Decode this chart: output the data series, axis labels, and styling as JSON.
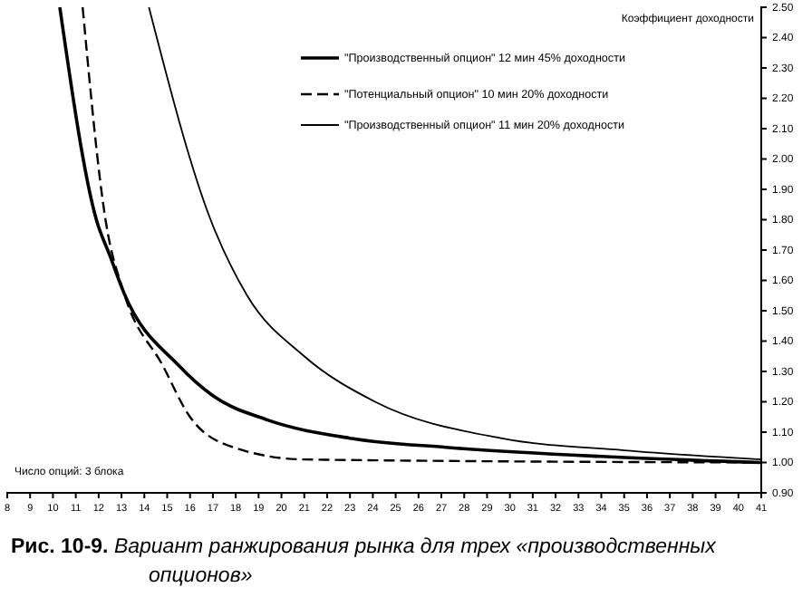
{
  "chart_data": {
    "type": "line",
    "title": "Рис. 10-9. Вариант ранжирования рынка для трех «производственных опционов»",
    "xlabel": "Число опций: 3 блока",
    "ylabel": "Коэффициент доходности",
    "xlim": [
      8,
      41
    ],
    "xticks": [
      8,
      9,
      10,
      11,
      12,
      13,
      14,
      15,
      16,
      17,
      18,
      19,
      20,
      21,
      22,
      23,
      24,
      25,
      26,
      27,
      28,
      29,
      30,
      31,
      32,
      33,
      34,
      35,
      36,
      37,
      38,
      39,
      40,
      41
    ],
    "ylim": [
      0.9,
      2.5
    ],
    "yticks": [
      {
        "value": 0.9,
        "label": "0.90"
      },
      {
        "value": 1.0,
        "label": "1.00"
      },
      {
        "value": 1.1,
        "label": "1.10"
      },
      {
        "value": 1.2,
        "label": "1.20"
      },
      {
        "value": 1.3,
        "label": "1.30"
      },
      {
        "value": 1.4,
        "label": "1.40"
      },
      {
        "value": 1.5,
        "label": "1.50"
      },
      {
        "value": 1.6,
        "label": "1.60"
      },
      {
        "value": 1.7,
        "label": "1.70"
      },
      {
        "value": 1.8,
        "label": "1.80"
      },
      {
        "value": 1.9,
        "label": "1.90"
      },
      {
        "value": 2.0,
        "label": "2.00"
      },
      {
        "value": 2.1,
        "label": "2.10"
      },
      {
        "value": 2.2,
        "label": "2.20"
      },
      {
        "value": 2.3,
        "label": "2.30"
      },
      {
        "value": 2.4,
        "label": "2.40"
      },
      {
        "value": 2.5,
        "label": "2.50"
      }
    ],
    "marker": "none",
    "grid": false,
    "legend": "top",
    "series": [
      {
        "name": "\"Производственный опцион\" 12 мин 45% доходности",
        "color": "#000000",
        "line_style": "solid",
        "x": [
          10.3,
          11.9,
          12.5,
          13.1,
          15.5,
          17,
          19.4,
          23,
          27.2,
          34,
          41
        ],
        "values": [
          2.5,
          1.8,
          1.68,
          1.56,
          1.32,
          1.22,
          1.14,
          1.08,
          1.05,
          1.02,
          1.0
        ]
      },
      {
        "name": "\"Потенциальный опцион\" 10 мин 20% доходности",
        "color": "#000000",
        "line_style": "dashed",
        "x": [
          11.3,
          12.3,
          13.1,
          14.8,
          16,
          17.9,
          21,
          41
        ],
        "values": [
          2.5,
          1.8,
          1.56,
          1.32,
          1.15,
          1.05,
          1.01,
          1.0
        ]
      },
      {
        "name": "\"Производственный опцион\" 11 мин 20% доходности",
        "color": "#000000",
        "line_style": "solid",
        "x": [
          14.2,
          16.9,
          18.5,
          21,
          24.1,
          29.6,
          35,
          41
        ],
        "values": [
          2.5,
          1.8,
          1.55,
          1.35,
          1.2,
          1.08,
          1.04,
          1.01
        ]
      }
    ]
  }
}
